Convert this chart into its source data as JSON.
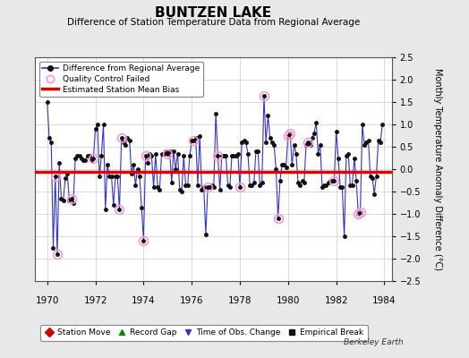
{
  "title": "BUNTZEN LAKE",
  "subtitle": "Difference of Station Temperature Data from Regional Average",
  "ylabel": "Monthly Temperature Anomaly Difference (°C)",
  "watermark": "Berkeley Earth",
  "bias": -0.05,
  "ylim": [
    -2.5,
    2.5
  ],
  "xlim": [
    1969.5,
    1984.3
  ],
  "xticks": [
    1970,
    1972,
    1974,
    1976,
    1978,
    1980,
    1982,
    1984
  ],
  "yticks": [
    -2.5,
    -2,
    -1.5,
    -1,
    -0.5,
    0,
    0.5,
    1,
    1.5,
    2,
    2.5
  ],
  "background_color": "#e8e8e8",
  "plot_bg_color": "#ffffff",
  "line_color": "#3333cc",
  "marker_color": "#111111",
  "bias_color": "#dd0000",
  "qc_color": "#ff99cc",
  "data_x": [
    1970.0,
    1970.083,
    1970.167,
    1970.25,
    1970.333,
    1970.417,
    1970.5,
    1970.583,
    1970.667,
    1970.75,
    1970.833,
    1970.917,
    1971.0,
    1971.083,
    1971.167,
    1971.25,
    1971.333,
    1971.417,
    1971.5,
    1971.583,
    1971.667,
    1971.75,
    1971.833,
    1971.917,
    1972.0,
    1972.083,
    1972.167,
    1972.25,
    1972.333,
    1972.417,
    1972.5,
    1972.583,
    1972.667,
    1972.75,
    1972.833,
    1972.917,
    1973.0,
    1973.083,
    1973.167,
    1973.25,
    1973.333,
    1973.417,
    1973.5,
    1973.583,
    1973.667,
    1973.75,
    1973.833,
    1973.917,
    1974.0,
    1974.083,
    1974.167,
    1974.25,
    1974.333,
    1974.417,
    1974.5,
    1974.583,
    1974.667,
    1974.75,
    1974.833,
    1974.917,
    1975.0,
    1975.083,
    1975.167,
    1975.25,
    1975.333,
    1975.417,
    1975.5,
    1975.583,
    1975.667,
    1975.75,
    1975.833,
    1975.917,
    1976.0,
    1976.083,
    1976.167,
    1976.25,
    1976.333,
    1976.417,
    1976.5,
    1976.583,
    1976.667,
    1976.75,
    1976.833,
    1976.917,
    1977.0,
    1977.083,
    1977.167,
    1977.25,
    1977.333,
    1977.417,
    1977.5,
    1977.583,
    1977.667,
    1977.75,
    1977.833,
    1977.917,
    1978.0,
    1978.083,
    1978.167,
    1978.25,
    1978.333,
    1978.417,
    1978.5,
    1978.583,
    1978.667,
    1978.75,
    1978.833,
    1978.917,
    1979.0,
    1979.083,
    1979.167,
    1979.25,
    1979.333,
    1979.417,
    1979.5,
    1979.583,
    1979.667,
    1979.75,
    1979.833,
    1979.917,
    1980.0,
    1980.083,
    1980.167,
    1980.25,
    1980.333,
    1980.417,
    1980.5,
    1980.583,
    1980.667,
    1980.75,
    1980.833,
    1980.917,
    1981.0,
    1981.083,
    1981.167,
    1981.25,
    1981.333,
    1981.417,
    1981.5,
    1981.583,
    1981.667,
    1981.75,
    1981.833,
    1981.917,
    1982.0,
    1982.083,
    1982.167,
    1982.25,
    1982.333,
    1982.417,
    1982.5,
    1982.583,
    1982.667,
    1982.75,
    1982.833,
    1982.917,
    1983.0,
    1983.083,
    1983.167,
    1983.25,
    1983.333,
    1983.417,
    1983.5,
    1983.583,
    1983.667,
    1983.75,
    1983.833,
    1983.917
  ],
  "data_y": [
    1.5,
    0.7,
    0.6,
    -1.75,
    -0.15,
    -1.9,
    0.15,
    -0.65,
    -0.7,
    -0.2,
    -0.1,
    -0.7,
    -0.65,
    -0.75,
    0.25,
    0.3,
    0.3,
    0.25,
    0.2,
    0.2,
    0.3,
    0.3,
    0.2,
    0.25,
    0.9,
    1.0,
    -0.15,
    0.3,
    1.0,
    -0.9,
    0.1,
    -0.15,
    -0.15,
    -0.8,
    -0.15,
    -0.15,
    -0.9,
    0.7,
    0.6,
    0.55,
    0.7,
    0.65,
    -0.1,
    0.1,
    -0.35,
    0.0,
    -0.15,
    -0.85,
    -1.6,
    0.3,
    0.15,
    0.35,
    0.3,
    -0.4,
    0.35,
    -0.4,
    -0.45,
    0.35,
    0.35,
    0.4,
    0.35,
    0.4,
    -0.3,
    0.4,
    0.0,
    0.35,
    -0.45,
    -0.5,
    0.3,
    -0.35,
    -0.35,
    0.3,
    0.65,
    0.65,
    0.7,
    -0.35,
    0.75,
    -0.45,
    -0.4,
    -1.45,
    -0.4,
    -0.4,
    -0.35,
    -0.4,
    1.25,
    0.3,
    -0.45,
    0.3,
    0.3,
    0.3,
    -0.35,
    -0.4,
    0.3,
    0.3,
    0.3,
    0.35,
    -0.4,
    0.6,
    0.65,
    0.6,
    0.35,
    -0.35,
    -0.35,
    -0.3,
    0.4,
    0.4,
    -0.35,
    -0.3,
    1.65,
    0.6,
    1.2,
    0.7,
    0.6,
    0.55,
    0.0,
    -1.1,
    -0.25,
    0.1,
    0.1,
    0.05,
    0.75,
    0.8,
    0.1,
    0.55,
    0.35,
    -0.3,
    -0.35,
    -0.25,
    -0.3,
    0.55,
    0.6,
    0.55,
    0.7,
    0.8,
    1.05,
    0.35,
    0.55,
    -0.4,
    -0.35,
    -0.35,
    -0.3,
    -0.25,
    -0.25,
    -0.25,
    0.85,
    0.25,
    -0.4,
    -0.4,
    -1.5,
    0.3,
    0.35,
    -0.35,
    -0.35,
    0.25,
    -0.25,
    -1.0,
    -0.95,
    1.0,
    0.55,
    0.6,
    0.65,
    -0.15,
    -0.2,
    -0.55,
    -0.15,
    0.65,
    0.6,
    1.0
  ],
  "qc_failed_indices": [
    4,
    5,
    12,
    23,
    36,
    37,
    48,
    49,
    60,
    73,
    80,
    85,
    96,
    108,
    115,
    120,
    121,
    130,
    143,
    155,
    156
  ],
  "legend1_labels": [
    "Difference from Regional Average",
    "Quality Control Failed",
    "Estimated Station Mean Bias"
  ],
  "legend2_labels": [
    "Station Move",
    "Record Gap",
    "Time of Obs. Change",
    "Empirical Break"
  ],
  "legend2_colors": [
    "#cc0000",
    "#008800",
    "#3333cc",
    "#111111"
  ],
  "legend2_markers": [
    "D",
    "^",
    "v",
    "s"
  ]
}
